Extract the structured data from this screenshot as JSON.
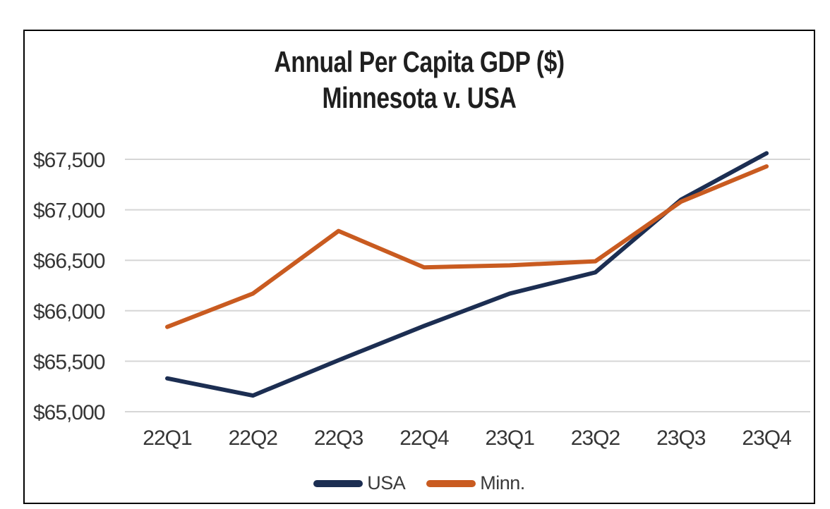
{
  "chart_data": {
    "type": "line",
    "title_line1": "Annual Per Capita GDP ($)",
    "title_line2": "Minnesota v. USA",
    "categories": [
      "22Q1",
      "22Q2",
      "22Q3",
      "22Q4",
      "23Q1",
      "23Q2",
      "23Q3",
      "23Q4"
    ],
    "series": [
      {
        "name": "USA",
        "color": "#1c2e52",
        "values": [
          65330,
          65160,
          65510,
          65850,
          66170,
          66380,
          67100,
          67560
        ]
      },
      {
        "name": "Minn.",
        "color": "#c95b20",
        "values": [
          65840,
          66170,
          66790,
          66430,
          66450,
          66490,
          67080,
          67430
        ]
      }
    ],
    "y_ticks": [
      65000,
      65500,
      66000,
      66500,
      67000,
      67500
    ],
    "y_tick_labels": [
      "$65,000",
      "$65,500",
      "$66,000",
      "$66,500",
      "$67,000",
      "$67,500"
    ],
    "ylim": [
      65000,
      67750
    ],
    "xlabel": "",
    "ylabel": "",
    "grid": true,
    "gridline_color": "#d6d6d6",
    "frame_border_color": "#000000",
    "title_color": "#1f1f1f",
    "axis_text_color": "#363636",
    "legend_position": "bottom"
  }
}
